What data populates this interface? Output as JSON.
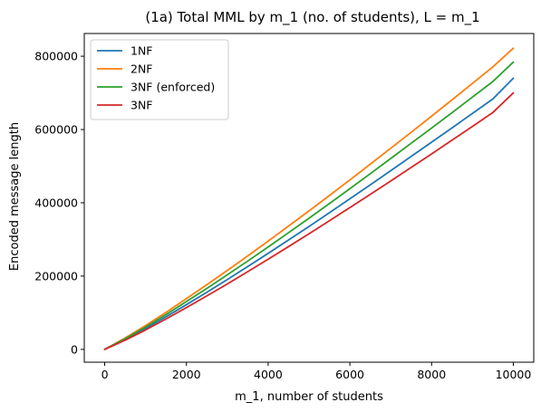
{
  "chart_data": {
    "type": "line",
    "title": "(1a) Total MML by m_1 (no. of students), L = m_1",
    "xlabel": "m_1, number of students",
    "ylabel": "Encoded message length",
    "xlim": [
      -500,
      10500
    ],
    "ylim": [
      -35000,
      862000
    ],
    "xticks": [
      0,
      2000,
      4000,
      6000,
      8000,
      10000
    ],
    "xtick_labels": [
      "0",
      "2000",
      "4000",
      "6000",
      "8000",
      "10000"
    ],
    "yticks": [
      0,
      200000,
      400000,
      600000,
      800000
    ],
    "ytick_labels": [
      "0",
      "200000",
      "400000",
      "600000",
      "800000"
    ],
    "grid": false,
    "legend_position": "upper-left",
    "x": [
      0,
      500,
      1000,
      1500,
      2000,
      2500,
      3000,
      3500,
      4000,
      4500,
      5000,
      5500,
      6000,
      6500,
      7000,
      7500,
      8000,
      8500,
      9000,
      9500,
      10000
    ],
    "series": [
      {
        "name": "1NF",
        "color": "#1f77b4",
        "values": [
          0,
          27000,
          57000,
          89000,
          122000,
          156000,
          190500,
          226000,
          262000,
          298500,
          335500,
          373000,
          411000,
          449000,
          487500,
          526500,
          565500,
          604500,
          644000,
          683500,
          740000
        ]
      },
      {
        "name": "2NF",
        "color": "#ff7f0e",
        "values": [
          0,
          31000,
          65000,
          101000,
          138500,
          176500,
          215500,
          255000,
          295500,
          336500,
          378000,
          420000,
          462500,
          505500,
          549000,
          592500,
          636500,
          681000,
          726000,
          771000,
          822000
        ]
      },
      {
        "name": "3NF (enforced)",
        "color": "#2ca02c",
        "values": [
          0,
          29000,
          61000,
          95000,
          130500,
          166500,
          203500,
          241000,
          279500,
          318500,
          358000,
          398000,
          438500,
          479500,
          521000,
          562500,
          604000,
          646000,
          688500,
          731000,
          784000
        ]
      },
      {
        "name": "3NF",
        "color": "#d62728",
        "values": [
          0,
          25000,
          53000,
          83000,
          114000,
          146000,
          178500,
          212000,
          246000,
          280500,
          315500,
          351000,
          387000,
          423000,
          459500,
          496500,
          533500,
          571000,
          608500,
          646500,
          700000
        ]
      }
    ]
  }
}
